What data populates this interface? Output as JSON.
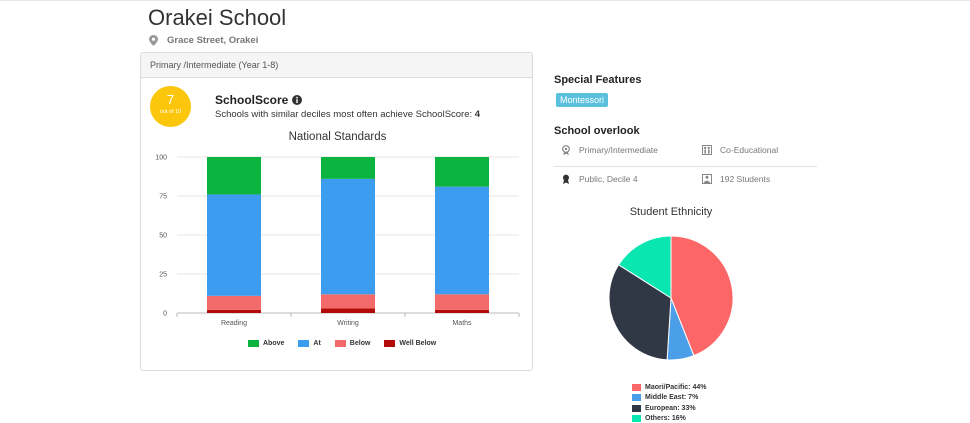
{
  "school": {
    "name": "Orakei School",
    "address": "Grace Street, Orakei"
  },
  "card": {
    "header": "Primary /Intermediate (Year 1-8)",
    "score": {
      "value": "7",
      "out_of": "out of 10"
    },
    "schoolscore_title": "SchoolScore",
    "schoolscore_desc": "Schools with similar deciles most often achieve SchoolScore:",
    "schoolscore_value": "4"
  },
  "side": {
    "special_features_title": "Special Features",
    "special_features": [
      "Montessori"
    ],
    "overlook_title": "School overlook",
    "overlook": {
      "type": "Primary/Intermediate",
      "gender": "Co-Educational",
      "authority": "Public, Decile 4",
      "students": "192 Students"
    }
  },
  "colors": {
    "above": "#0bb33f",
    "at": "#3b9cf0",
    "below": "#f36a6a",
    "well_below": "#b30a0a",
    "maori_pacific": "#fd6666",
    "middle_east": "#4a9fe8",
    "european": "#313845",
    "others": "#0ae6b0",
    "score": "#fbc60b",
    "badge": "#5bc0de"
  },
  "chart_data": [
    {
      "type": "bar",
      "stacked": true,
      "title": "National Standards",
      "categories": [
        "Reading",
        "Writing",
        "Maths"
      ],
      "series": [
        {
          "name": "Well Below",
          "values": [
            2,
            3,
            2
          ]
        },
        {
          "name": "Below",
          "values": [
            9,
            9,
            10
          ]
        },
        {
          "name": "At",
          "values": [
            65,
            74,
            69
          ]
        },
        {
          "name": "Above",
          "values": [
            24,
            14,
            19
          ]
        }
      ],
      "legend": [
        "Above",
        "At",
        "Below",
        "Well Below"
      ],
      "yticks": [
        "0",
        "25",
        "50",
        "75",
        "100"
      ],
      "ylim": [
        0,
        100
      ],
      "grid": true,
      "legend_position": "bottom"
    },
    {
      "type": "pie",
      "title": "Student Ethnicity",
      "slices": [
        {
          "label": "Maori/Pacific: 44%",
          "value": 44
        },
        {
          "label": "Middle East: 7%",
          "value": 7
        },
        {
          "label": "European: 33%",
          "value": 33
        },
        {
          "label": "Others: 16%",
          "value": 16
        }
      ],
      "legend_position": "bottom"
    }
  ]
}
